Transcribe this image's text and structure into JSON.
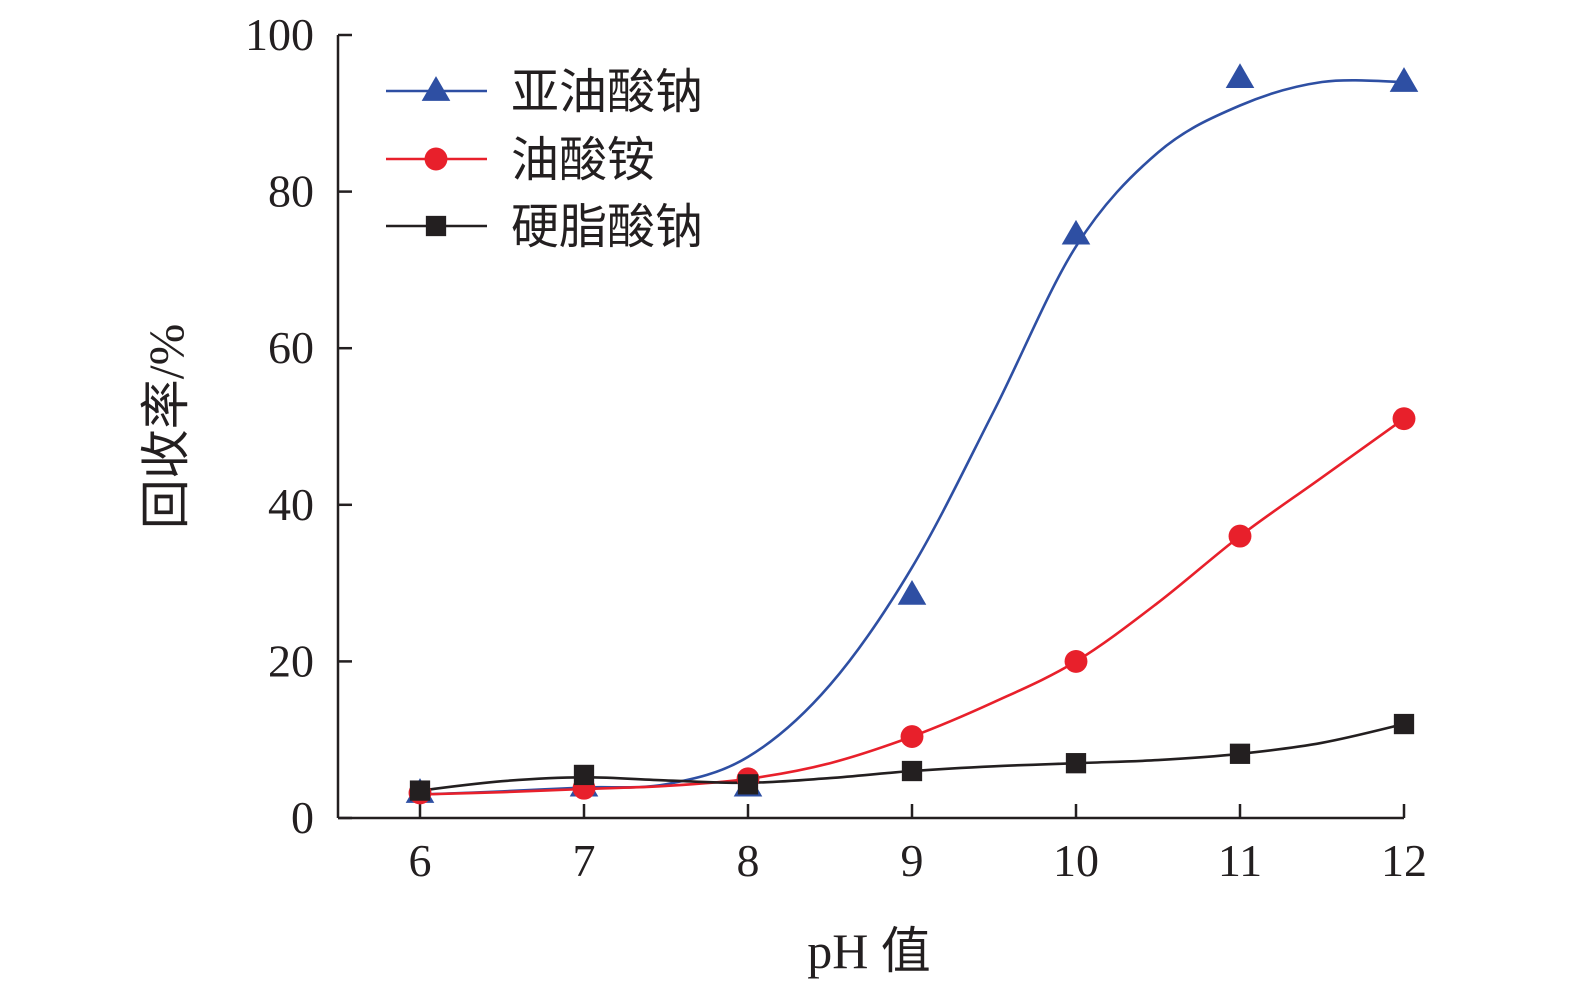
{
  "chart_data": {
    "type": "line",
    "title": "",
    "xlabel": "pH 值",
    "ylabel": "回收率/%",
    "x": [
      6,
      7,
      8,
      9,
      10,
      11,
      12
    ],
    "xlim": [
      5.5,
      12
    ],
    "ylim": [
      0,
      100
    ],
    "xticks": [
      "6",
      "7",
      "8",
      "9",
      "10",
      "11",
      "12"
    ],
    "yticks": [
      "0",
      "20",
      "40",
      "60",
      "80",
      "100"
    ],
    "grid": false,
    "legend_position": "top-left",
    "series": [
      {
        "name": "亚油酸钠",
        "marker": "triangle",
        "color": "#2e4fa3",
        "values": [
          3.2,
          4.0,
          4.0,
          28.5,
          74.5,
          94.5,
          94.0
        ]
      },
      {
        "name": "油酸铵",
        "marker": "circle",
        "color": "#e8202b",
        "values": [
          3.2,
          3.8,
          5.0,
          10.4,
          20.0,
          36.0,
          51.0
        ]
      },
      {
        "name": "硬脂酸钠",
        "marker": "square",
        "color": "#231f20",
        "values": [
          3.5,
          5.5,
          4.3,
          6.0,
          7.0,
          8.2,
          12.0
        ]
      }
    ],
    "fitted_curves": [
      {
        "series": "亚油酸钠",
        "x": [
          6,
          6.5,
          7,
          7.5,
          8,
          8.5,
          9,
          9.5,
          10,
          10.5,
          11,
          11.5,
          12
        ],
        "y": [
          3.0,
          3.4,
          3.9,
          4.3,
          7.8,
          17.0,
          32.0,
          52.0,
          73.0,
          85.0,
          91.0,
          94.0,
          94.0
        ]
      },
      {
        "series": "油酸铵",
        "x": [
          6,
          6.5,
          7,
          7.5,
          8,
          8.5,
          9,
          9.5,
          10,
          10.5,
          11,
          11.5,
          12
        ],
        "y": [
          3.0,
          3.3,
          3.7,
          4.1,
          5.0,
          7.0,
          10.4,
          14.8,
          20.0,
          27.5,
          36.0,
          43.5,
          51.0
        ]
      },
      {
        "series": "硬脂酸钠",
        "x": [
          6,
          6.5,
          7,
          7.5,
          8,
          8.5,
          9,
          9.5,
          10,
          10.5,
          11,
          11.5,
          12
        ],
        "y": [
          3.5,
          4.7,
          5.2,
          4.8,
          4.5,
          5.1,
          6.0,
          6.6,
          7.0,
          7.4,
          8.2,
          9.6,
          12.0
        ]
      }
    ]
  }
}
